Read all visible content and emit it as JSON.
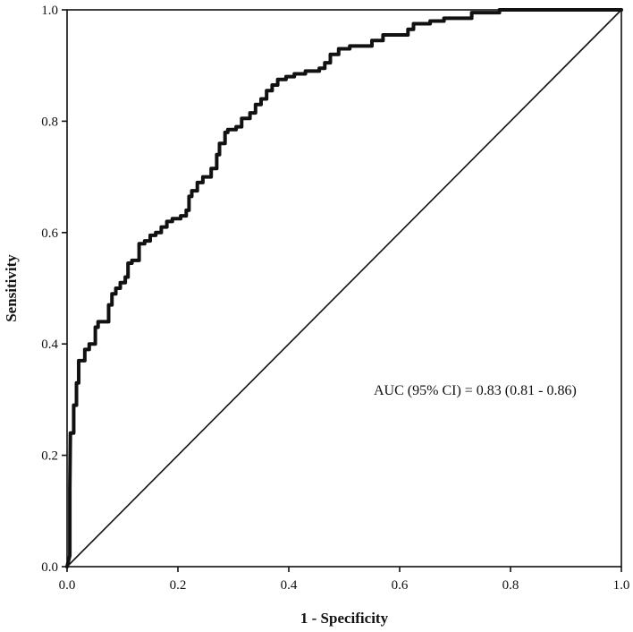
{
  "chart_data": {
    "type": "line",
    "title": "",
    "xlabel": "1 - Specificity",
    "ylabel": "Sensitivity",
    "xlim": [
      0.0,
      1.0
    ],
    "ylim": [
      0.0,
      1.0
    ],
    "x_ticks": [
      "0.0",
      "0.2",
      "0.4",
      "0.6",
      "0.8",
      "1.0"
    ],
    "y_ticks": [
      "0.0",
      "0.2",
      "0.4",
      "0.6",
      "0.8",
      "1.0"
    ],
    "grid": false,
    "legend": "none",
    "annotation": "AUC (95% CI) =  0.83 (0.81 - 0.86)",
    "series": [
      {
        "points": [
          [
            0.0,
            0.0
          ],
          [
            0.005,
            0.02
          ],
          [
            0.005,
            0.14
          ],
          [
            0.006,
            0.24
          ],
          [
            0.012,
            0.24
          ],
          [
            0.012,
            0.29
          ],
          [
            0.017,
            0.29
          ],
          [
            0.017,
            0.33
          ],
          [
            0.021,
            0.33
          ],
          [
            0.021,
            0.37
          ],
          [
            0.032,
            0.37
          ],
          [
            0.032,
            0.39
          ],
          [
            0.04,
            0.39
          ],
          [
            0.04,
            0.4
          ],
          [
            0.051,
            0.4
          ],
          [
            0.051,
            0.43
          ],
          [
            0.056,
            0.43
          ],
          [
            0.056,
            0.44
          ],
          [
            0.075,
            0.44
          ],
          [
            0.075,
            0.47
          ],
          [
            0.081,
            0.47
          ],
          [
            0.081,
            0.49
          ],
          [
            0.088,
            0.49
          ],
          [
            0.088,
            0.5
          ],
          [
            0.096,
            0.5
          ],
          [
            0.096,
            0.51
          ],
          [
            0.105,
            0.51
          ],
          [
            0.105,
            0.52
          ],
          [
            0.11,
            0.52
          ],
          [
            0.11,
            0.545
          ],
          [
            0.117,
            0.545
          ],
          [
            0.117,
            0.55
          ],
          [
            0.13,
            0.55
          ],
          [
            0.13,
            0.58
          ],
          [
            0.14,
            0.58
          ],
          [
            0.14,
            0.585
          ],
          [
            0.15,
            0.585
          ],
          [
            0.15,
            0.595
          ],
          [
            0.16,
            0.595
          ],
          [
            0.16,
            0.6
          ],
          [
            0.17,
            0.6
          ],
          [
            0.17,
            0.61
          ],
          [
            0.18,
            0.61
          ],
          [
            0.18,
            0.62
          ],
          [
            0.19,
            0.62
          ],
          [
            0.19,
            0.625
          ],
          [
            0.205,
            0.625
          ],
          [
            0.205,
            0.63
          ],
          [
            0.215,
            0.63
          ],
          [
            0.215,
            0.64
          ],
          [
            0.22,
            0.64
          ],
          [
            0.22,
            0.665
          ],
          [
            0.225,
            0.665
          ],
          [
            0.225,
            0.675
          ],
          [
            0.235,
            0.675
          ],
          [
            0.235,
            0.69
          ],
          [
            0.245,
            0.69
          ],
          [
            0.245,
            0.7
          ],
          [
            0.26,
            0.7
          ],
          [
            0.26,
            0.715
          ],
          [
            0.27,
            0.715
          ],
          [
            0.27,
            0.74
          ],
          [
            0.275,
            0.74
          ],
          [
            0.275,
            0.76
          ],
          [
            0.285,
            0.76
          ],
          [
            0.285,
            0.78
          ],
          [
            0.29,
            0.78
          ],
          [
            0.29,
            0.785
          ],
          [
            0.305,
            0.785
          ],
          [
            0.305,
            0.79
          ],
          [
            0.315,
            0.79
          ],
          [
            0.315,
            0.805
          ],
          [
            0.33,
            0.805
          ],
          [
            0.33,
            0.815
          ],
          [
            0.34,
            0.815
          ],
          [
            0.34,
            0.83
          ],
          [
            0.35,
            0.83
          ],
          [
            0.35,
            0.84
          ],
          [
            0.36,
            0.84
          ],
          [
            0.36,
            0.855
          ],
          [
            0.37,
            0.855
          ],
          [
            0.37,
            0.865
          ],
          [
            0.38,
            0.865
          ],
          [
            0.38,
            0.875
          ],
          [
            0.395,
            0.875
          ],
          [
            0.395,
            0.88
          ],
          [
            0.41,
            0.88
          ],
          [
            0.41,
            0.885
          ],
          [
            0.43,
            0.885
          ],
          [
            0.43,
            0.89
          ],
          [
            0.455,
            0.89
          ],
          [
            0.455,
            0.895
          ],
          [
            0.465,
            0.895
          ],
          [
            0.465,
            0.905
          ],
          [
            0.475,
            0.905
          ],
          [
            0.475,
            0.92
          ],
          [
            0.49,
            0.92
          ],
          [
            0.49,
            0.93
          ],
          [
            0.51,
            0.93
          ],
          [
            0.51,
            0.935
          ],
          [
            0.55,
            0.935
          ],
          [
            0.55,
            0.945
          ],
          [
            0.57,
            0.945
          ],
          [
            0.57,
            0.955
          ],
          [
            0.615,
            0.955
          ],
          [
            0.615,
            0.965
          ],
          [
            0.625,
            0.965
          ],
          [
            0.625,
            0.975
          ],
          [
            0.655,
            0.975
          ],
          [
            0.655,
            0.98
          ],
          [
            0.68,
            0.98
          ],
          [
            0.68,
            0.985
          ],
          [
            0.73,
            0.985
          ],
          [
            0.73,
            0.995
          ],
          [
            0.78,
            0.995
          ],
          [
            0.78,
            1.0
          ],
          [
            1.0,
            1.0
          ]
        ]
      },
      {
        "points": [
          [
            0.0,
            0.0
          ],
          [
            1.0,
            1.0
          ]
        ]
      }
    ]
  }
}
